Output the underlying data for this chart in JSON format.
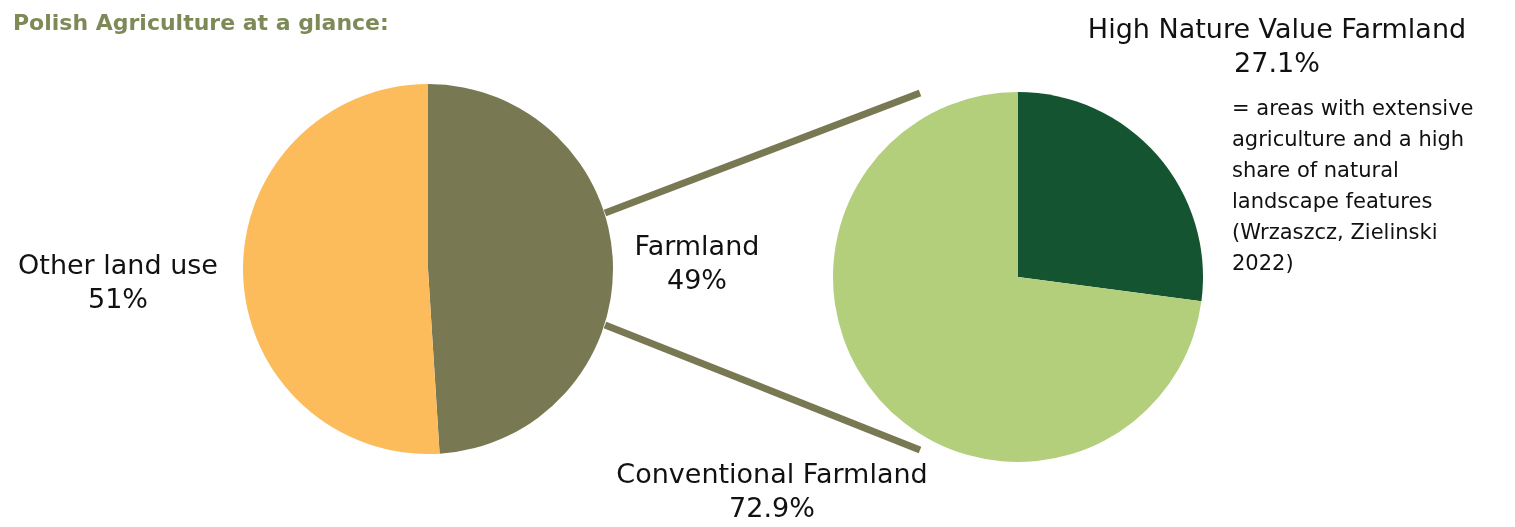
{
  "chart_data": [
    {
      "type": "pie",
      "title": "Polish Agriculture at a glance:",
      "categories": [
        "Farmland",
        "Other land use"
      ],
      "values": [
        49,
        51
      ],
      "value_labels": [
        "49%",
        "51%"
      ],
      "colors": [
        "#787853",
        "#fcbc5c"
      ],
      "legend": false
    },
    {
      "type": "pie",
      "categories": [
        "High Nature Value Farmland",
        "Conventional Farmland"
      ],
      "values": [
        27.1,
        72.9
      ],
      "value_labels": [
        "27.1%",
        "72.9%"
      ],
      "colors": [
        "#145430",
        "#b3cf7c"
      ],
      "legend": false,
      "annotations": [
        "= areas with extensive agriculture and a high share of natural landscape features (Wrzaszcz, Zielinski 2022)"
      ]
    }
  ]
}
